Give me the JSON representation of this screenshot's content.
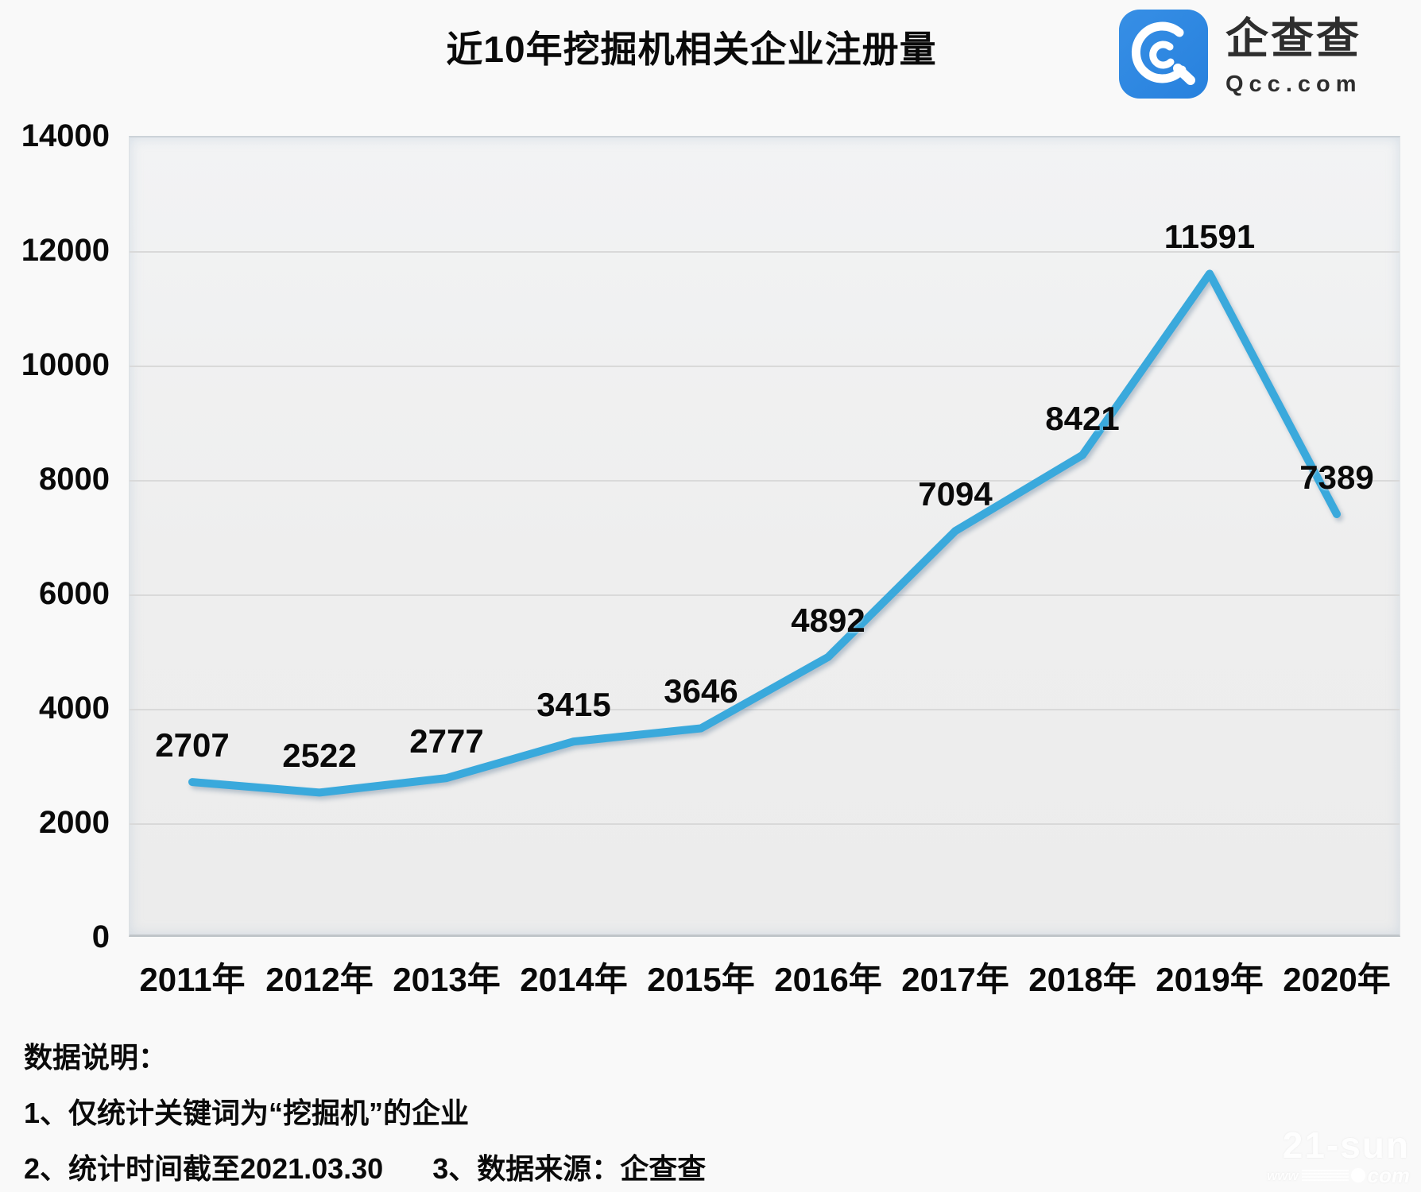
{
  "title": "近10年挖掘机相关企业注册量",
  "logo": {
    "brand": "企查查",
    "domain": "Qcc.com",
    "icon": "qcc-magnifier-q",
    "accent_color": "#2b87e2",
    "text_color": "#2e2e2e"
  },
  "chart_data": {
    "type": "line",
    "title": "近10年挖掘机相关企业注册量",
    "categories": [
      "2011年",
      "2012年",
      "2013年",
      "2014年",
      "2015年",
      "2016年",
      "2017年",
      "2018年",
      "2019年",
      "2020年"
    ],
    "values": [
      2707,
      2522,
      2777,
      3415,
      3646,
      4892,
      7094,
      8421,
      11591,
      7389
    ],
    "xlabel": "",
    "ylabel": "",
    "ylim": [
      0,
      14000
    ],
    "ytick_step": 2000,
    "yticks": [
      0,
      2000,
      4000,
      6000,
      8000,
      10000,
      12000,
      14000
    ],
    "grid": "horizontal",
    "legend_position": "none",
    "line_color": "#3aa9dc",
    "data_labels_shown": true
  },
  "footer": {
    "heading": "数据说明：",
    "note1": "1、仅统计关键词为“挖掘机”的企业",
    "note2": "2、统计时间截至2021.03.30",
    "note3": "3、数据来源：企查查"
  },
  "watermark": {
    "line1": "21-sun",
    "www": "www",
    "com": "com"
  }
}
